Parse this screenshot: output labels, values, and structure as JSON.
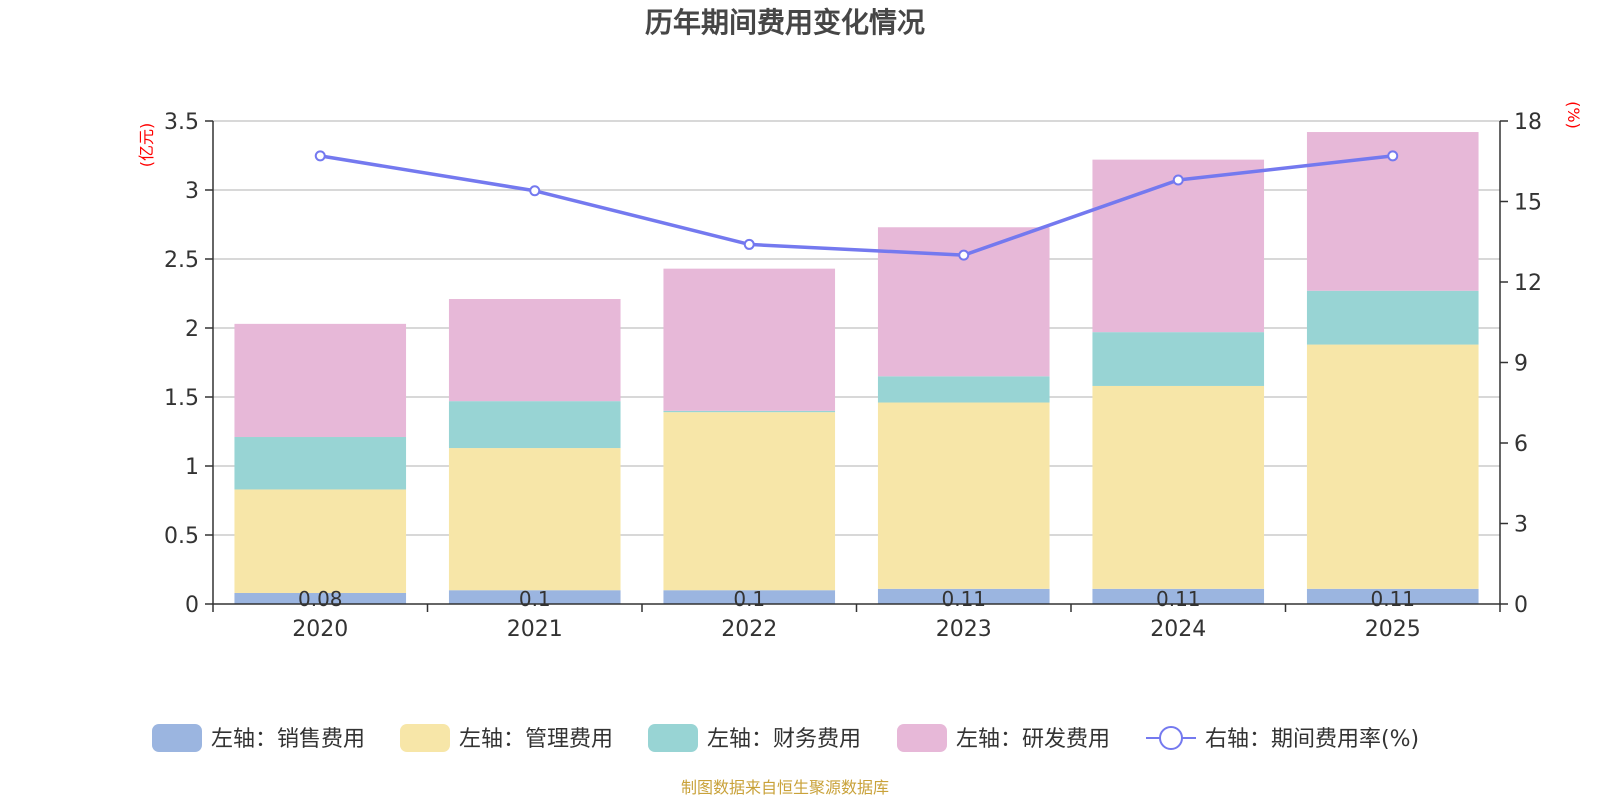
{
  "chart_data": {
    "type": "bar",
    "title": "历年期间费用变化情况",
    "categories": [
      "2020",
      "2021",
      "2022",
      "2023",
      "2024",
      "2025"
    ],
    "left_axis": {
      "unit": "(亿元)",
      "ylim": [
        0,
        3.5
      ],
      "ticks": [
        "0",
        "0.5",
        "1",
        "1.5",
        "2",
        "2.5",
        "3",
        "3.5"
      ],
      "tick_values": [
        0,
        0.5,
        1,
        1.5,
        2,
        2.5,
        3,
        3.5
      ]
    },
    "right_axis": {
      "unit": "(%)",
      "ylim": [
        0,
        18
      ],
      "ticks": [
        "0",
        "3",
        "6",
        "9",
        "12",
        "15",
        "18"
      ],
      "tick_values": [
        0,
        3,
        6,
        9,
        12,
        15,
        18
      ]
    },
    "stacked_series": [
      {
        "name": "左轴：销售费用",
        "color": "#9bb5e0",
        "values": [
          0.08,
          0.1,
          0.1,
          0.11,
          0.11,
          0.11
        ],
        "labels": [
          "0.08",
          "0.1",
          "0.1",
          "0.11",
          "0.11",
          "0.11"
        ]
      },
      {
        "name": "左轴：管理费用",
        "color": "#f7e6a8",
        "values": [
          0.75,
          1.03,
          1.29,
          1.35,
          1.47,
          1.77
        ]
      },
      {
        "name": "左轴：财务费用",
        "color": "#98d4d4",
        "values": [
          0.38,
          0.34,
          0.01,
          0.19,
          0.39,
          0.39
        ]
      },
      {
        "name": "左轴：研发费用",
        "color": "#e7b8d8",
        "values": [
          0.82,
          0.74,
          1.03,
          1.08,
          1.25,
          1.15
        ]
      }
    ],
    "line_series": {
      "name": "右轴：期间费用率(%)",
      "color": "#7479ef",
      "values": [
        16.7,
        15.4,
        13.4,
        13.0,
        15.8,
        16.7
      ]
    },
    "source": "制图数据来自恒生聚源数据库"
  }
}
